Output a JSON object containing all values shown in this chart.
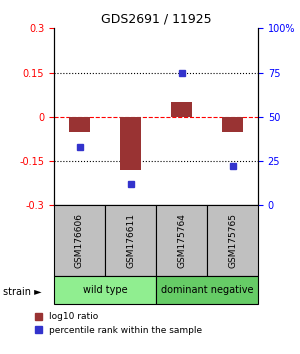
{
  "title": "GDS2691 / 11925",
  "samples": [
    "GSM176606",
    "GSM176611",
    "GSM175764",
    "GSM175765"
  ],
  "log10_ratio": [
    -0.05,
    -0.18,
    0.05,
    -0.05
  ],
  "percentile_rank": [
    33,
    12,
    75,
    22
  ],
  "groups": [
    {
      "label": "wild type",
      "color": "#90EE90",
      "samples": [
        0,
        1
      ]
    },
    {
      "label": "dominant negative",
      "color": "#66CC66",
      "samples": [
        2,
        3
      ]
    }
  ],
  "bar_color": "#993333",
  "dot_color": "#3333CC",
  "ylim_left": [
    -0.3,
    0.3
  ],
  "ylim_right": [
    0,
    100
  ],
  "yticks_left": [
    -0.3,
    -0.15,
    0,
    0.15,
    0.3
  ],
  "yticks_right": [
    0,
    25,
    50,
    75,
    100
  ],
  "ytick_labels_left": [
    "-0.3",
    "-0.15",
    "0",
    "0.15",
    "0.3"
  ],
  "ytick_labels_right": [
    "0",
    "25",
    "50",
    "75",
    "100%"
  ],
  "hlines": [
    -0.15,
    0,
    0.15
  ],
  "hline_colors": [
    "black",
    "red",
    "black"
  ],
  "hline_styles": [
    "dotted",
    "dashed",
    "dotted"
  ],
  "legend_red_label": "log10 ratio",
  "legend_blue_label": "percentile rank within the sample",
  "strain_label": "strain",
  "sample_cell_color": "#C0C0C0",
  "background_color": "#FFFFFF"
}
